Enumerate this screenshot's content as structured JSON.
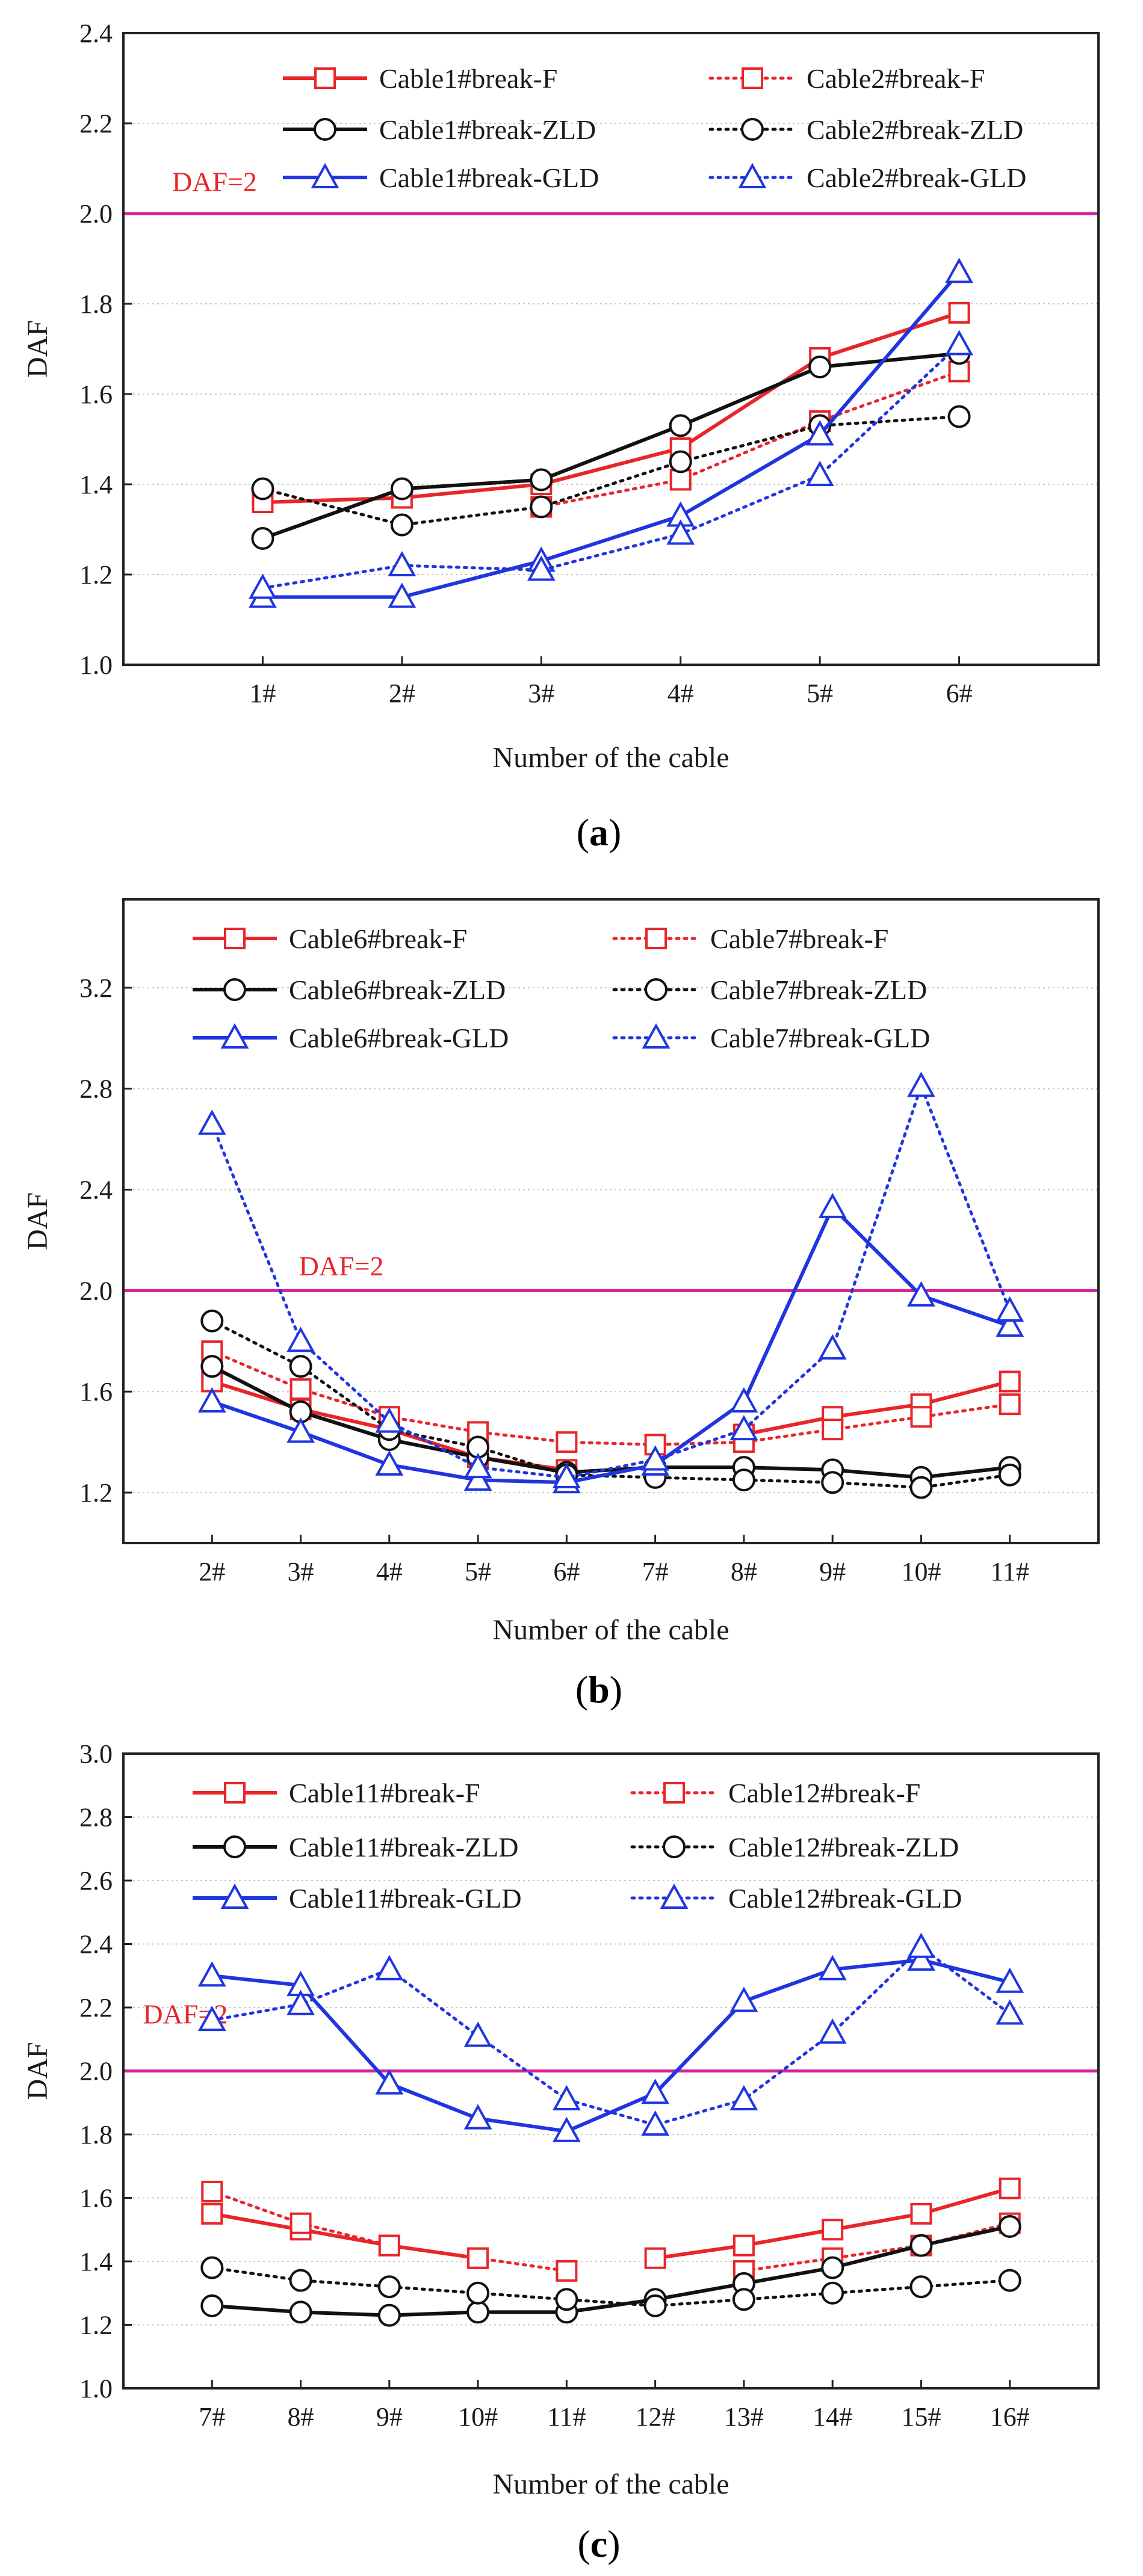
{
  "figure": {
    "colors": {
      "F": "#e8262a",
      "ZLD": "#111111",
      "GLD": "#1f35e0",
      "ref": "#d6219a",
      "grid": "#c8c8c8",
      "axis": "#222222"
    },
    "styles": {
      "F": {
        "marker": "square"
      },
      "ZLD": {
        "marker": "circle"
      },
      "GLD": {
        "marker": "triangle"
      }
    }
  },
  "chart_data": [
    {
      "panel": "a",
      "caption_open": "(",
      "caption_letter": "a",
      "caption_close": ")",
      "type": "line",
      "xlabel": "Number of the cable",
      "ylabel": "DAF",
      "categories": [
        "1#",
        "2#",
        "3#",
        "4#",
        "5#",
        "6#"
      ],
      "ylim": [
        1.0,
        2.4
      ],
      "yticks": [
        "1.0",
        "1.2",
        "1.4",
        "1.6",
        "1.8",
        "2.0",
        "2.2",
        "2.4"
      ],
      "grid": true,
      "reference_line": {
        "value": 2.0,
        "label": "DAF=2",
        "label_x": 0.05,
        "label_y": 2.05
      },
      "series": [
        {
          "name": "Cable1#break-F",
          "group": "F",
          "dashed": false,
          "values": [
            1.36,
            1.37,
            1.4,
            1.48,
            1.68,
            1.78
          ]
        },
        {
          "name": "Cable2#break-F",
          "group": "F",
          "dashed": true,
          "values": [
            null,
            null,
            1.35,
            1.41,
            1.54,
            1.65
          ]
        },
        {
          "name": "Cable1#break-ZLD",
          "group": "ZLD",
          "dashed": false,
          "values": [
            1.28,
            1.39,
            1.41,
            1.53,
            1.66,
            1.69
          ]
        },
        {
          "name": "Cable2#break-ZLD",
          "group": "ZLD",
          "dashed": true,
          "values": [
            1.39,
            1.31,
            1.35,
            1.45,
            1.53,
            1.55
          ]
        },
        {
          "name": "Cable1#break-GLD",
          "group": "GLD",
          "dashed": false,
          "values": [
            1.15,
            1.15,
            1.23,
            1.33,
            1.51,
            1.87
          ]
        },
        {
          "name": "Cable2#break-GLD",
          "group": "GLD",
          "dashed": true,
          "values": [
            1.17,
            1.22,
            1.21,
            1.29,
            1.42,
            1.71
          ]
        }
      ]
    },
    {
      "panel": "b",
      "caption_open": "(",
      "caption_letter": "b",
      "caption_close": ")",
      "type": "line",
      "xlabel": "Number of the cable",
      "ylabel": "DAF",
      "categories": [
        "2#",
        "3#",
        "4#",
        "5#",
        "6#",
        "7#",
        "8#",
        "9#",
        "10#",
        "11#"
      ],
      "ylim": [
        1.0,
        3.55
      ],
      "yticks": [
        "1.2",
        "1.6",
        "2.0",
        "2.4",
        "2.8",
        "3.2"
      ],
      "grid": true,
      "reference_line": {
        "value": 2.0,
        "label": "DAF=2",
        "label_x": 0.18,
        "label_y": 2.06
      },
      "series": [
        {
          "name": "Cable6#break-F",
          "group": "F",
          "dashed": false,
          "values": [
            1.64,
            1.53,
            1.45,
            1.34,
            1.29,
            null,
            1.43,
            1.5,
            1.55,
            1.64
          ]
        },
        {
          "name": "Cable7#break-F",
          "group": "F",
          "dashed": true,
          "values": [
            1.76,
            1.61,
            1.5,
            1.44,
            1.4,
            1.39,
            1.4,
            1.45,
            1.5,
            1.55
          ]
        },
        {
          "name": "Cable6#break-ZLD",
          "group": "ZLD",
          "dashed": false,
          "values": [
            1.7,
            1.52,
            1.41,
            1.34,
            1.28,
            1.3,
            1.3,
            1.29,
            1.26,
            1.3
          ]
        },
        {
          "name": "Cable7#break-ZLD",
          "group": "ZLD",
          "dashed": true,
          "values": [
            1.88,
            1.7,
            1.45,
            1.38,
            1.27,
            1.26,
            1.25,
            1.24,
            1.22,
            1.27
          ]
        },
        {
          "name": "Cable6#break-GLD",
          "group": "GLD",
          "dashed": false,
          "values": [
            1.56,
            1.44,
            1.31,
            1.25,
            1.24,
            1.31,
            1.56,
            2.33,
            1.98,
            1.86
          ]
        },
        {
          "name": "Cable7#break-GLD",
          "group": "GLD",
          "dashed": true,
          "values": [
            2.66,
            1.8,
            1.48,
            1.3,
            1.26,
            1.33,
            1.45,
            1.77,
            2.81,
            1.92
          ]
        }
      ]
    },
    {
      "panel": "c",
      "caption_open": "(",
      "caption_letter": "c",
      "caption_close": ")",
      "type": "line",
      "xlabel": "Number of the cable",
      "ylabel": "DAF",
      "categories": [
        "7#",
        "8#",
        "9#",
        "10#",
        "11#",
        "12#",
        "13#",
        "14#",
        "15#",
        "16#"
      ],
      "ylim": [
        1.0,
        3.0
      ],
      "yticks": [
        "1.0",
        "1.2",
        "1.4",
        "1.6",
        "1.8",
        "2.0",
        "2.2",
        "2.4",
        "2.6",
        "2.8",
        "3.0"
      ],
      "grid": true,
      "reference_line": {
        "value": 2.0,
        "label": "DAF=2",
        "label_x": 0.02,
        "label_y": 2.15
      },
      "series": [
        {
          "name": "Cable11#break-F",
          "group": "F",
          "dashed": false,
          "values": [
            1.55,
            1.5,
            1.45,
            1.41,
            null,
            1.41,
            1.45,
            1.5,
            1.55,
            1.63
          ]
        },
        {
          "name": "Cable12#break-F",
          "group": "F",
          "dashed": true,
          "values": [
            1.62,
            1.52,
            1.45,
            1.41,
            1.37,
            null,
            1.37,
            1.41,
            1.45,
            1.52
          ]
        },
        {
          "name": "Cable11#break-ZLD",
          "group": "ZLD",
          "dashed": false,
          "values": [
            1.26,
            1.24,
            1.23,
            1.24,
            1.24,
            1.28,
            1.33,
            1.38,
            1.45,
            1.51
          ]
        },
        {
          "name": "Cable12#break-ZLD",
          "group": "ZLD",
          "dashed": true,
          "values": [
            1.38,
            1.34,
            1.32,
            1.3,
            1.28,
            1.26,
            1.28,
            1.3,
            1.32,
            1.34
          ]
        },
        {
          "name": "Cable11#break-GLD",
          "group": "GLD",
          "dashed": false,
          "values": [
            2.3,
            2.27,
            1.96,
            1.85,
            1.81,
            1.93,
            2.22,
            2.32,
            2.35,
            2.28
          ]
        },
        {
          "name": "Cable12#break-GLD",
          "group": "GLD",
          "dashed": true,
          "values": [
            2.16,
            2.21,
            2.32,
            2.11,
            1.91,
            1.83,
            1.91,
            2.12,
            2.39,
            2.18
          ]
        }
      ]
    }
  ]
}
